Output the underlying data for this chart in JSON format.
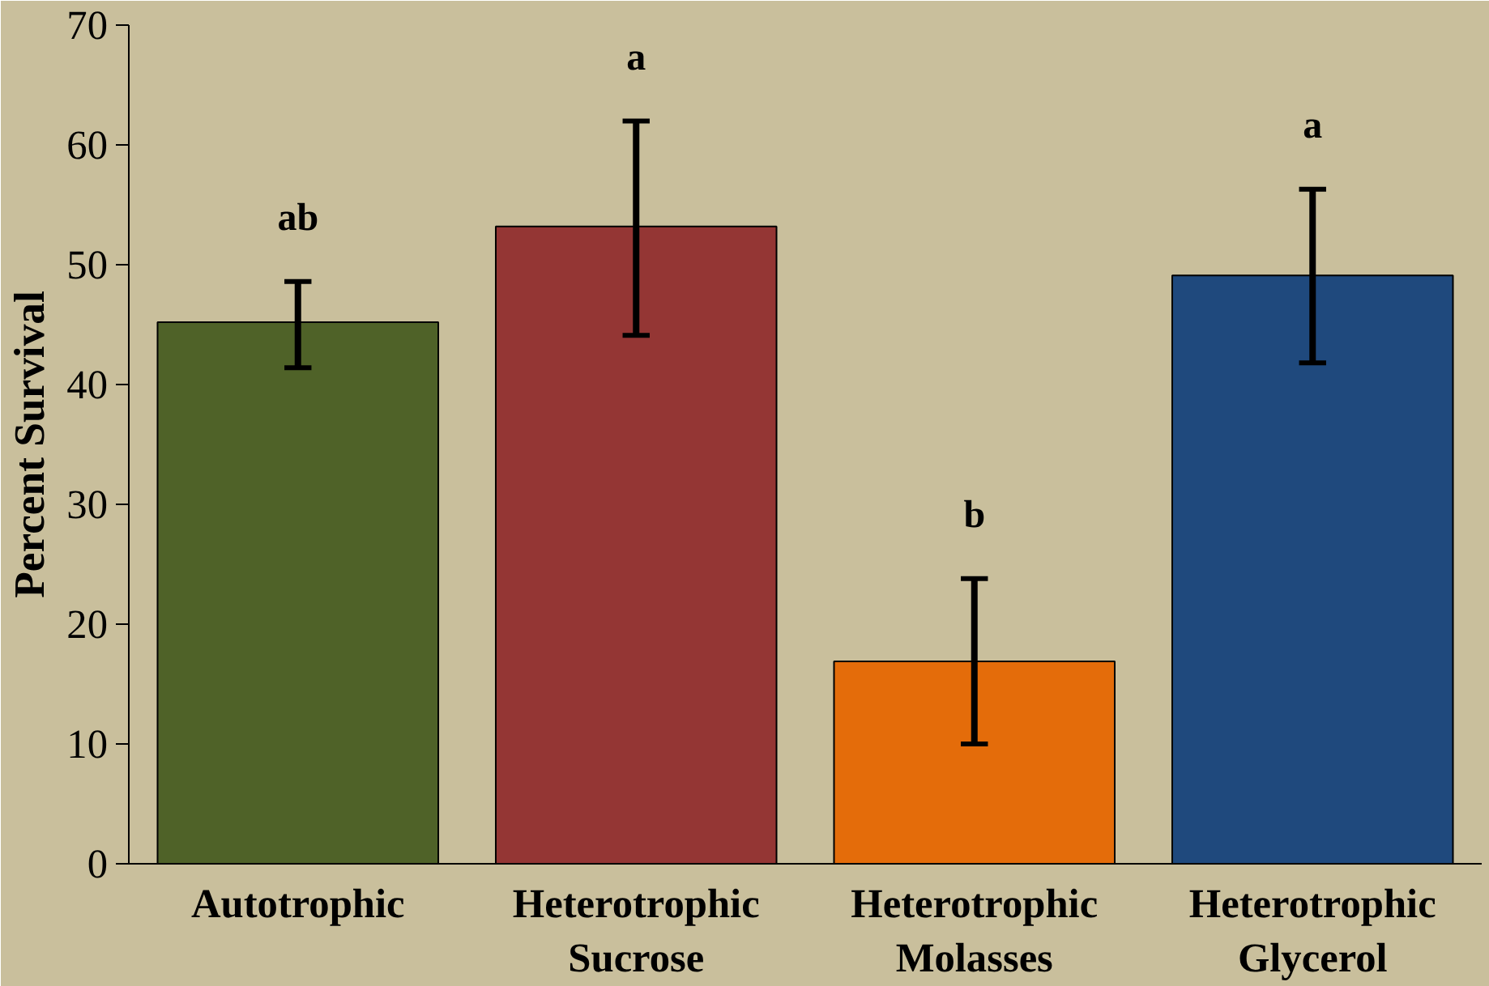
{
  "chart_data": {
    "type": "bar",
    "ylabel": "Percent Survival",
    "categories": [
      "Autotrophic",
      "Heterotrophic\nSucrose",
      "Heterotrophic\nMolasses",
      "Heterotrophic\nGlycerol"
    ],
    "values": [
      45.2,
      53.2,
      16.9,
      49.1
    ],
    "colors": [
      "#4f6228",
      "#943634",
      "#e46c0a",
      "#1f497d"
    ],
    "errors": [
      [
        41.4,
        48.6
      ],
      [
        44.1,
        62.0
      ],
      [
        10.0,
        23.8
      ],
      [
        41.8,
        56.3
      ]
    ],
    "ylim": [
      0,
      70
    ],
    "yticks": [
      0,
      10,
      20,
      30,
      40,
      50,
      60,
      70
    ],
    "grid": false,
    "annotations": [
      "ab",
      "a",
      "b",
      "a"
    ]
  }
}
